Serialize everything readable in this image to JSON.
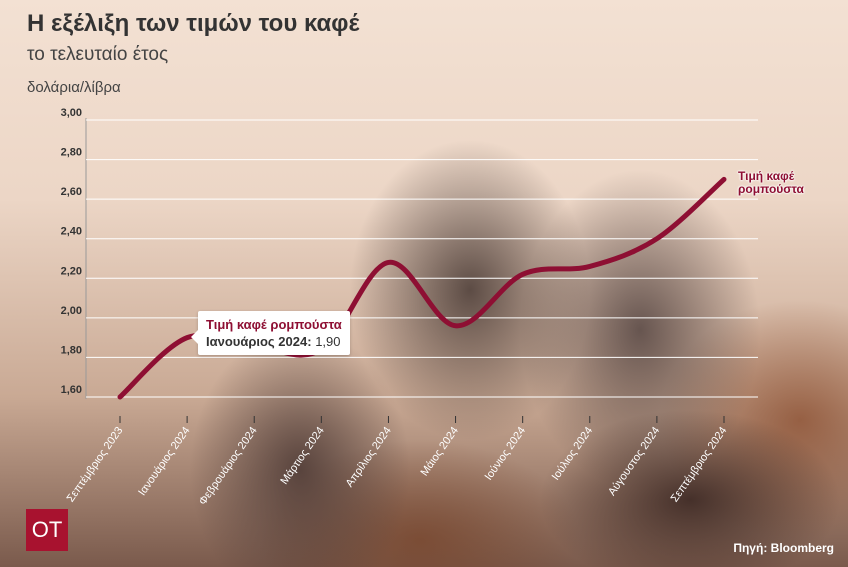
{
  "title": "Η εξέλιξη των τιμών του καφέ",
  "subtitle": "το τελευταίο έτος",
  "unit_label": "δολάρια/λίβρα",
  "source": {
    "label": "Πηγή:",
    "value": "Bloomberg"
  },
  "logo": "OT",
  "colors": {
    "series": "#8e0f33",
    "logo": "#a8122f",
    "grid": "#ffffff"
  },
  "tooltip": {
    "series": "Τιμή καφέ ρομπούστα",
    "x": "Ιανουάριος 2024:",
    "value": "1,90"
  },
  "chart_data": {
    "type": "line",
    "title": "Η εξέλιξη των τιμών του καφέ",
    "subtitle": "το τελευταίο έτος",
    "ylabel": "δολάρια/λίβρα",
    "ylim": [
      1.6,
      3.0
    ],
    "yticks": [
      "1,60",
      "1,80",
      "2,00",
      "2,20",
      "2,40",
      "2,60",
      "2,80",
      "3,00"
    ],
    "grid": true,
    "categories": [
      "Σεπτέμβριος 2023",
      "Ιανουάριος 2024",
      "Φεβρουάριος 2024",
      "Μάρτιος 2024",
      "Απρίλιος 2024",
      "Μάιος 2024",
      "Ιούνιος 2024",
      "Ιούλιος 2024",
      "Αύγουστος 2024",
      "Σεπτέμβριος 2024"
    ],
    "series": [
      {
        "name": "Τιμή καφέ ρομπούστα",
        "values": [
          1.6,
          1.9,
          1.86,
          1.84,
          2.28,
          1.96,
          2.22,
          2.26,
          2.4,
          2.7
        ]
      }
    ]
  }
}
